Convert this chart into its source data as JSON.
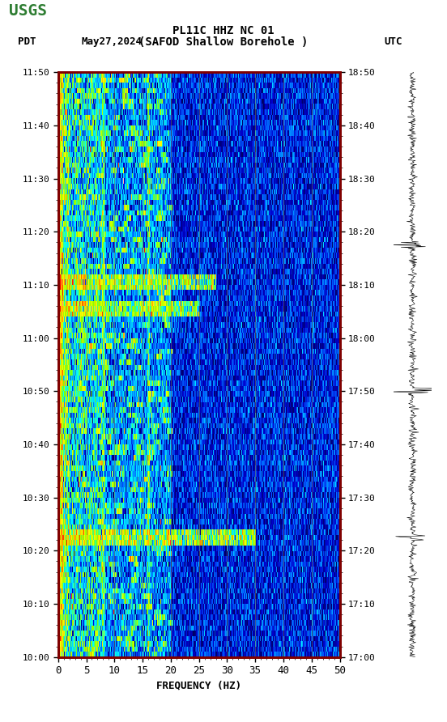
{
  "title_line1": "PL11C HHZ NC 01",
  "title_line2": "(SAFOD Shallow Borehole )",
  "date_label": "May27,2024",
  "tz_left": "PDT",
  "tz_right": "UTC",
  "time_start_left": "10:00",
  "time_end_left": "11:50",
  "time_start_right": "17:00",
  "time_end_right": "18:50",
  "freq_min": 0,
  "freq_max": 50,
  "freq_label": "FREQUENCY (HZ)",
  "freq_ticks": [
    0,
    5,
    10,
    15,
    20,
    25,
    30,
    35,
    40,
    45,
    50
  ],
  "time_ticks_left": [
    "10:00",
    "10:10",
    "10:20",
    "10:30",
    "10:40",
    "10:50",
    "11:00",
    "11:10",
    "11:20",
    "11:30",
    "11:40",
    "11:50"
  ],
  "time_ticks_right": [
    "17:00",
    "17:10",
    "17:20",
    "17:30",
    "17:40",
    "17:50",
    "18:00",
    "18:10",
    "18:20",
    "18:30",
    "18:40",
    "18:50"
  ],
  "bg_color": "#000080",
  "plot_bg": "#000080",
  "border_color": "#8B0000",
  "fig_bg": "#ffffff",
  "usgs_green": "#2e7d32",
  "vertical_line_color": "#808040",
  "vertical_lines_freq": [
    5,
    10,
    15,
    20,
    25,
    30,
    35,
    40,
    45
  ],
  "n_time_bins": 110,
  "n_freq_bins": 500,
  "seed": 42
}
